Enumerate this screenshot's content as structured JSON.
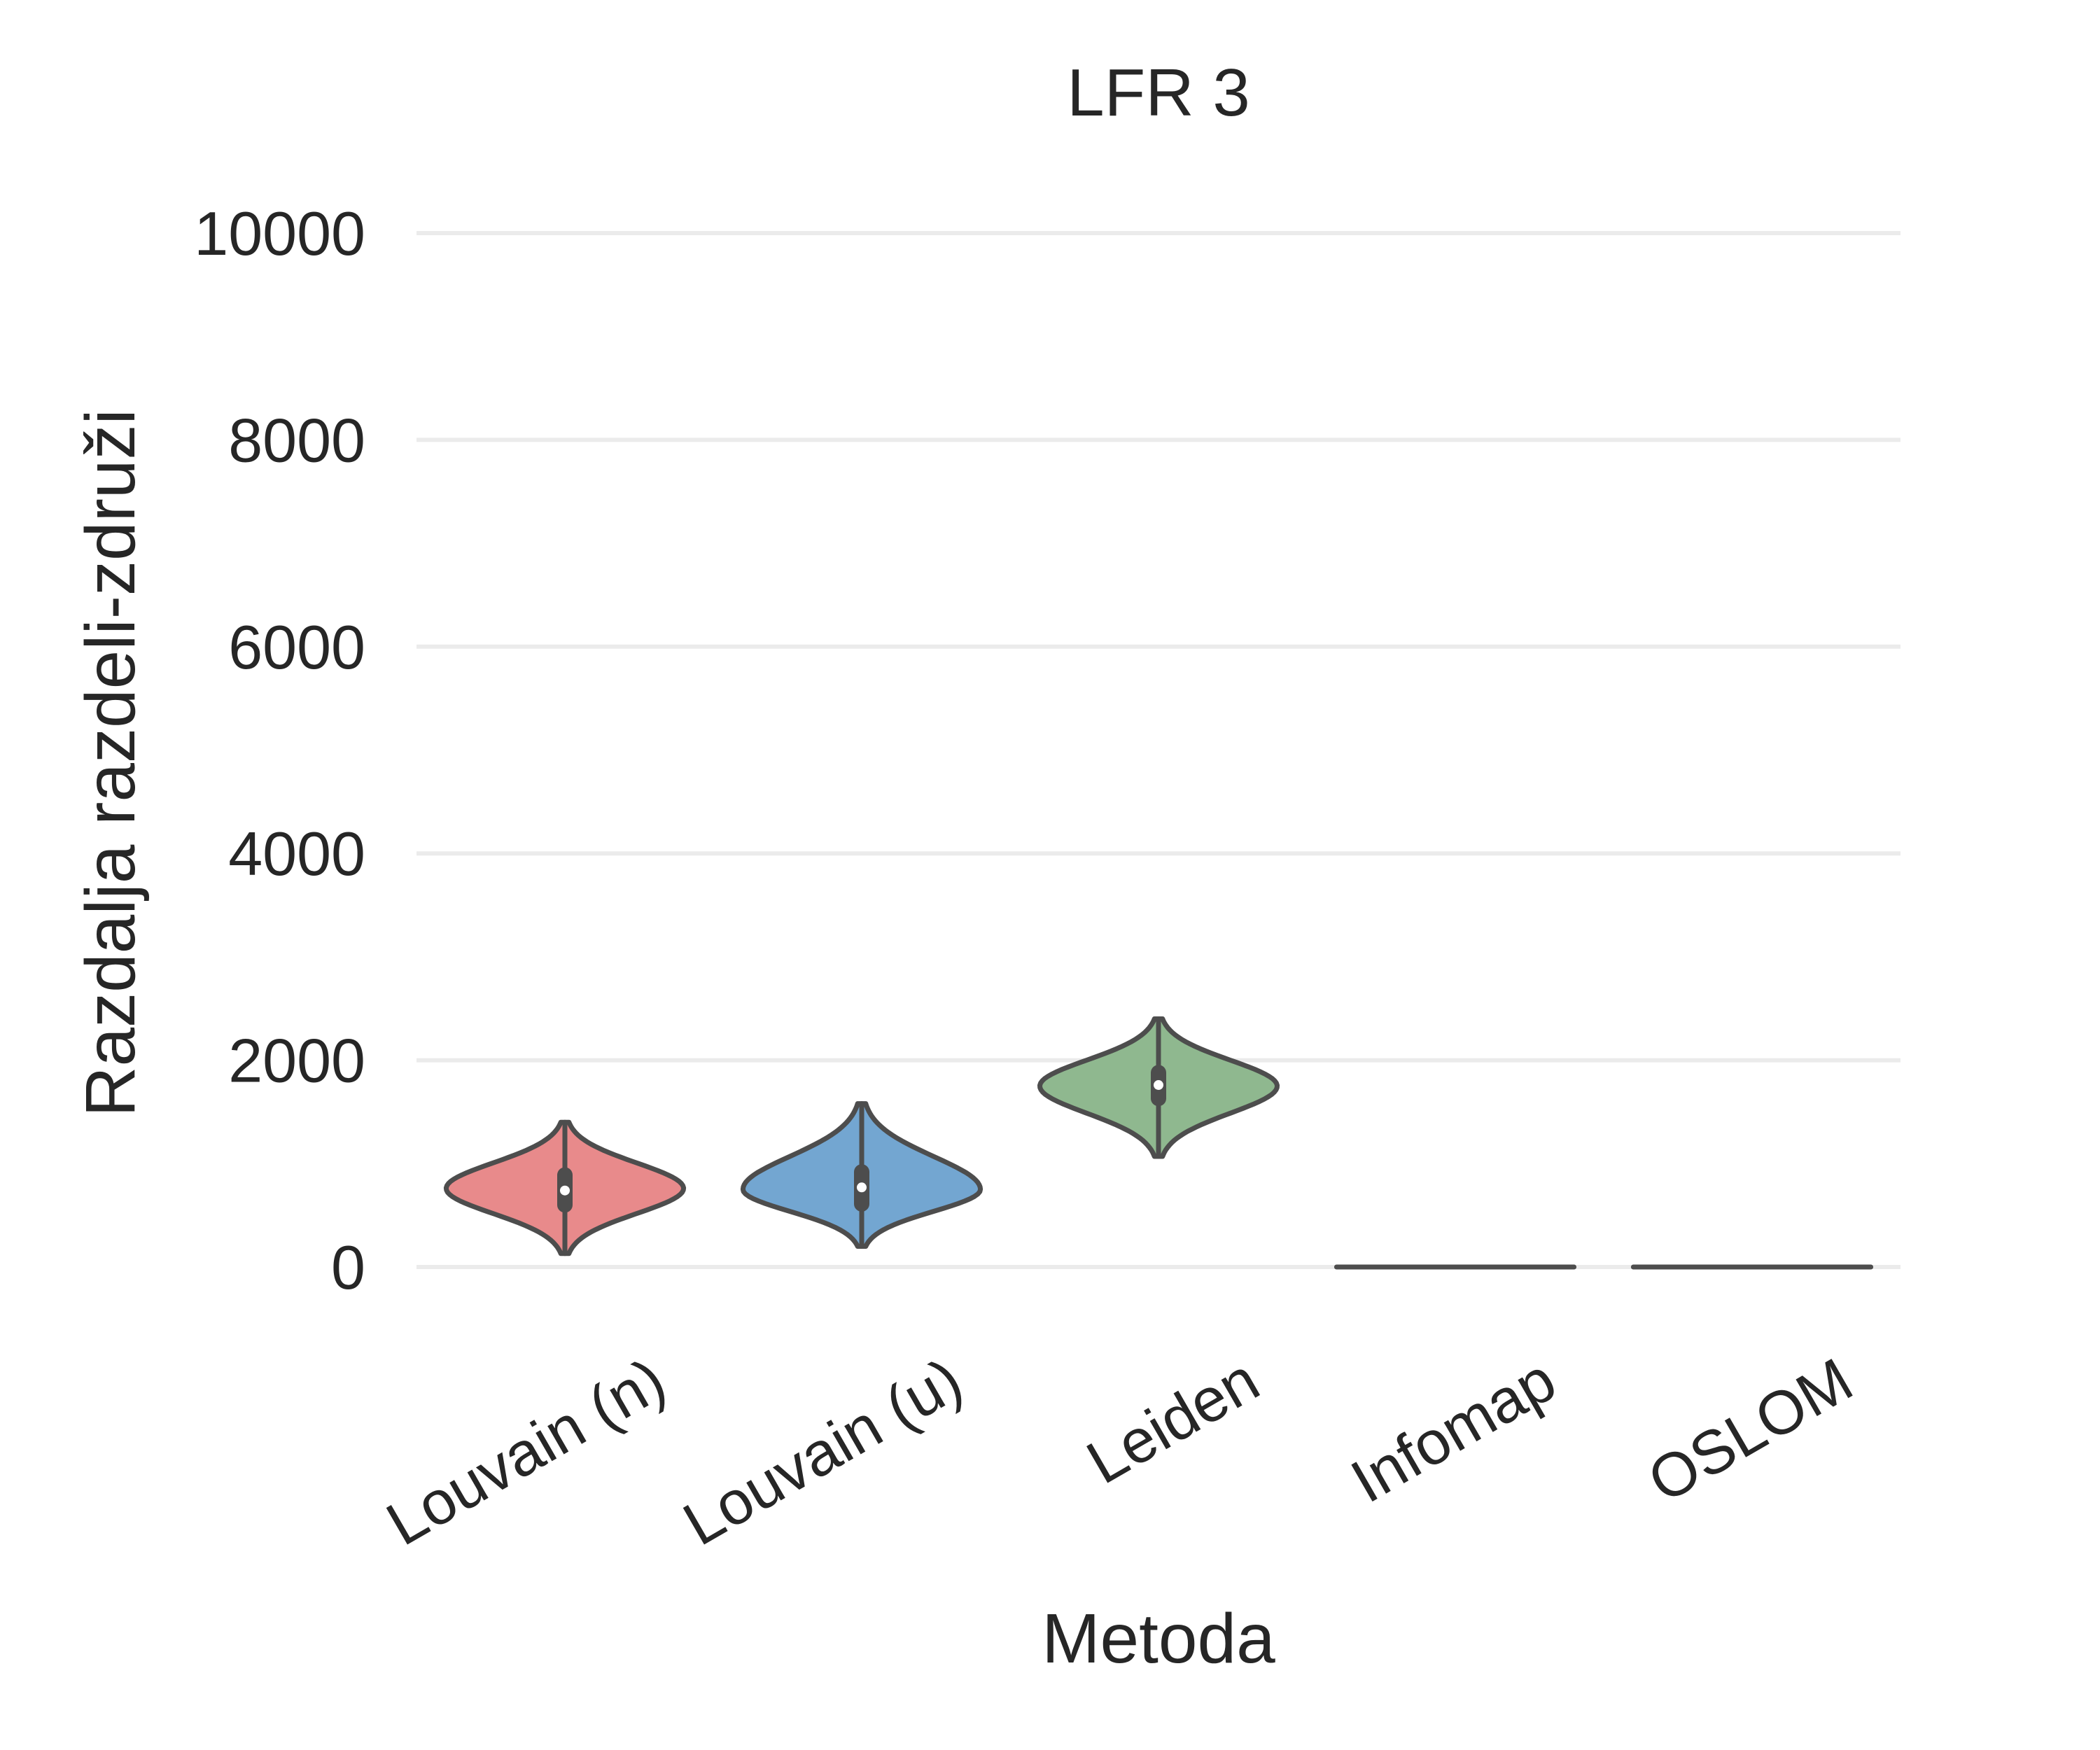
{
  "chart_data": {
    "type": "violin",
    "title": "LFR 3",
    "xlabel": "Metoda",
    "ylabel": "Razdalja razdeli-združi",
    "ylim": [
      -500,
      10500
    ],
    "yticks": [
      0,
      2000,
      4000,
      6000,
      8000,
      10000
    ],
    "grid": true,
    "legend": "none",
    "categories": [
      "Louvain (n)",
      "Louvain (u)",
      "Leiden",
      "Infomap",
      "OSLOM"
    ],
    "colors": [
      "#e88a8b",
      "#73a6d1",
      "#8fb88f",
      "#4d4d4d",
      "#4d4d4d"
    ],
    "series": [
      {
        "category": "Louvain (n)",
        "min": 130,
        "q1": 600,
        "median": 740,
        "q3": 890,
        "max": 1400,
        "mode": 760
      },
      {
        "category": "Louvain (u)",
        "min": 200,
        "q1": 610,
        "median": 770,
        "q3": 920,
        "max": 1580,
        "mode": 750
      },
      {
        "category": "Leiden",
        "min": 1070,
        "q1": 1630,
        "median": 1760,
        "q3": 1880,
        "max": 2400,
        "mode": 1750
      },
      {
        "category": "Infomap",
        "min": 0,
        "q1": 0,
        "median": 0,
        "q3": 0,
        "max": 0,
        "mode": 0
      },
      {
        "category": "OSLOM",
        "min": 0,
        "q1": 0,
        "median": 0,
        "q3": 0,
        "max": 0,
        "mode": 0
      }
    ]
  }
}
